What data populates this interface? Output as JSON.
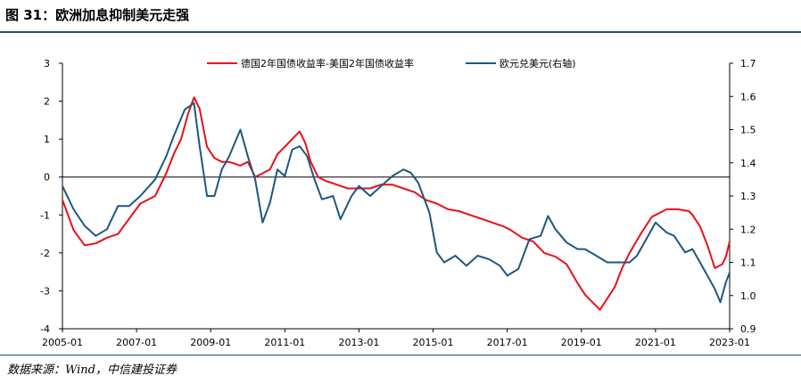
{
  "figure": {
    "title": "图 31：欧洲加息抑制美元走强",
    "source": "数据来源：Wind，中信建投证券"
  },
  "colors": {
    "spread": "#e8101b",
    "eurusd": "#1d5781",
    "rule": "#1f4e79",
    "zero_line": "#000000"
  },
  "chart_data": {
    "type": "line",
    "x_ticks": [
      "2005-01",
      "2007-01",
      "2009-01",
      "2011-01",
      "2013-01",
      "2015-01",
      "2017-01",
      "2019-01",
      "2021-01",
      "2023-01"
    ],
    "xlim": [
      2005.0,
      2023.0
    ],
    "ylim_left": [
      -4,
      3
    ],
    "yticks_left": [
      "3",
      "2",
      "1",
      "0",
      "-1",
      "-2",
      "-3",
      "-4"
    ],
    "ylim_right": [
      0.9,
      1.7
    ],
    "yticks_right": [
      "1.7",
      "1.6",
      "1.5",
      "1.4",
      "1.3",
      "1.2",
      "1.1",
      "1.0",
      "0.9"
    ],
    "legend": {
      "position": "top"
    },
    "series": [
      {
        "name": "德国2年国债收益率-美国2年国债收益率",
        "axis": "left",
        "color_key": "spread",
        "x": [
          2005.0,
          2005.3,
          2005.6,
          2005.9,
          2006.2,
          2006.5,
          2006.8,
          2007.1,
          2007.5,
          2007.8,
          2008.0,
          2008.2,
          2008.4,
          2008.55,
          2008.7,
          2008.8,
          2008.9,
          2009.1,
          2009.3,
          2009.5,
          2009.8,
          2010.0,
          2010.2,
          2010.4,
          2010.6,
          2010.8,
          2011.0,
          2011.2,
          2011.4,
          2011.55,
          2011.7,
          2011.9,
          2012.1,
          2012.4,
          2012.7,
          2013.0,
          2013.3,
          2013.6,
          2013.9,
          2014.2,
          2014.5,
          2014.8,
          2015.1,
          2015.4,
          2015.7,
          2016.0,
          2016.3,
          2016.6,
          2016.9,
          2017.1,
          2017.4,
          2017.7,
          2018.0,
          2018.3,
          2018.6,
          2018.9,
          2019.1,
          2019.3,
          2019.5,
          2019.7,
          2019.9,
          2020.1,
          2020.3,
          2020.6,
          2020.9,
          2021.0,
          2021.3,
          2021.6,
          2021.9,
          2022.0,
          2022.2,
          2022.4,
          2022.6,
          2022.8,
          2022.9,
          2023.0
        ],
        "values": [
          -0.6,
          -1.4,
          -1.8,
          -1.75,
          -1.6,
          -1.5,
          -1.1,
          -0.7,
          -0.5,
          0.1,
          0.6,
          1.0,
          1.7,
          2.1,
          1.8,
          1.3,
          0.8,
          0.5,
          0.4,
          0.4,
          0.3,
          0.4,
          0.0,
          0.1,
          0.2,
          0.6,
          0.8,
          1.0,
          1.2,
          0.9,
          0.4,
          0.0,
          -0.1,
          -0.2,
          -0.3,
          -0.3,
          -0.3,
          -0.2,
          -0.2,
          -0.3,
          -0.4,
          -0.6,
          -0.7,
          -0.85,
          -0.9,
          -1.0,
          -1.1,
          -1.2,
          -1.3,
          -1.4,
          -1.6,
          -1.7,
          -2.0,
          -2.1,
          -2.3,
          -2.8,
          -3.1,
          -3.3,
          -3.5,
          -3.2,
          -2.9,
          -2.4,
          -2.0,
          -1.5,
          -1.05,
          -1.0,
          -0.85,
          -0.85,
          -0.9,
          -1.0,
          -1.3,
          -1.8,
          -2.4,
          -2.3,
          -2.1,
          -1.7
        ]
      },
      {
        "name": "欧元兑美元(右轴)",
        "axis": "right",
        "color_key": "eurusd",
        "x": [
          2005.0,
          2005.3,
          2005.6,
          2005.9,
          2006.2,
          2006.5,
          2006.8,
          2007.1,
          2007.5,
          2007.8,
          2008.0,
          2008.3,
          2008.55,
          2008.7,
          2008.9,
          2009.1,
          2009.3,
          2009.5,
          2009.8,
          2010.0,
          2010.2,
          2010.4,
          2010.6,
          2010.8,
          2011.0,
          2011.2,
          2011.4,
          2011.6,
          2011.8,
          2012.0,
          2012.3,
          2012.5,
          2012.8,
          2013.0,
          2013.3,
          2013.6,
          2013.9,
          2014.2,
          2014.4,
          2014.6,
          2014.9,
          2015.1,
          2015.3,
          2015.6,
          2015.9,
          2016.2,
          2016.5,
          2016.8,
          2017.0,
          2017.3,
          2017.6,
          2017.9,
          2018.1,
          2018.3,
          2018.6,
          2018.9,
          2019.1,
          2019.4,
          2019.7,
          2020.0,
          2020.3,
          2020.5,
          2020.8,
          2021.0,
          2021.3,
          2021.5,
          2021.8,
          2022.0,
          2022.2,
          2022.4,
          2022.6,
          2022.75,
          2022.9,
          2023.0
        ],
        "values": [
          1.33,
          1.26,
          1.21,
          1.18,
          1.2,
          1.27,
          1.27,
          1.3,
          1.35,
          1.42,
          1.48,
          1.56,
          1.58,
          1.45,
          1.3,
          1.3,
          1.38,
          1.42,
          1.5,
          1.42,
          1.35,
          1.22,
          1.28,
          1.38,
          1.36,
          1.44,
          1.45,
          1.42,
          1.35,
          1.29,
          1.3,
          1.23,
          1.3,
          1.33,
          1.3,
          1.33,
          1.36,
          1.38,
          1.37,
          1.34,
          1.25,
          1.13,
          1.1,
          1.12,
          1.09,
          1.12,
          1.11,
          1.09,
          1.06,
          1.08,
          1.17,
          1.18,
          1.24,
          1.2,
          1.16,
          1.14,
          1.14,
          1.12,
          1.1,
          1.1,
          1.1,
          1.12,
          1.18,
          1.22,
          1.19,
          1.18,
          1.13,
          1.14,
          1.1,
          1.06,
          1.02,
          0.98,
          1.04,
          1.07
        ]
      }
    ]
  }
}
